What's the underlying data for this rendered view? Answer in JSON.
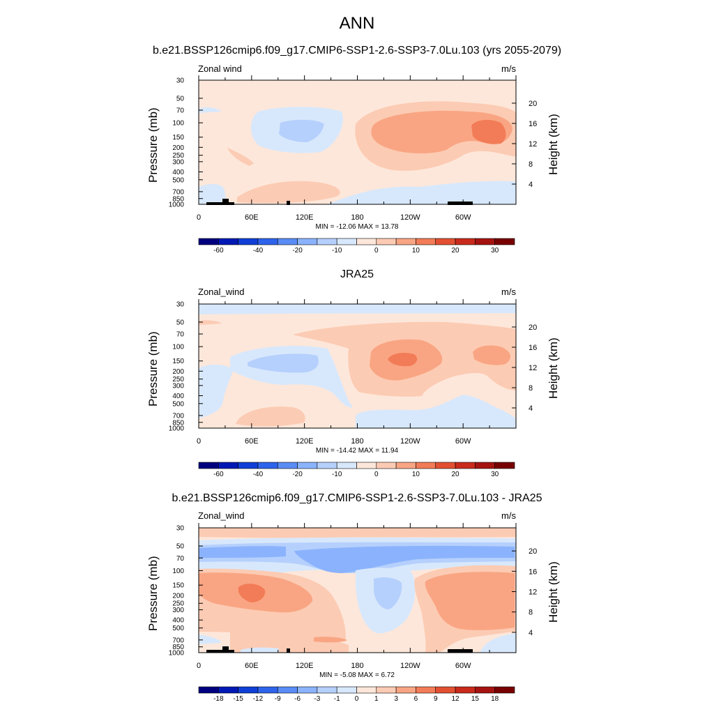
{
  "figure": {
    "title": "ANN"
  },
  "colors": {
    "scale": [
      "#00007f",
      "#0019b4",
      "#0f3fd6",
      "#2e63eb",
      "#5a8cf6",
      "#8bb3fd",
      "#b6d0fd",
      "#d8e8fc",
      "#fde7da",
      "#fccbb3",
      "#f9a583",
      "#f27c57",
      "#e35031",
      "#c92a1b",
      "#a51310",
      "#780000"
    ]
  },
  "chart_data": [
    {
      "type": "heatmap",
      "title": "b.e21.BSSP126cmip6.f09_g17.CMIP6-SSP1-2.6-SSP3-7.0Lu.103 (yrs 2055-2079)",
      "variable": "Zonal wind",
      "units": "m/s",
      "ylabel": "Pressure (mb)",
      "y2label": "Height (km)",
      "x_ticks": [
        "0",
        "60E",
        "120E",
        "180",
        "120W",
        "60W"
      ],
      "y_ticks": [
        "30",
        "50",
        "70",
        "100",
        "150",
        "200",
        "250",
        "300",
        "400",
        "500",
        "700",
        "850",
        "1000"
      ],
      "y2_ticks": [
        "20",
        "16",
        "12",
        "8",
        "4"
      ],
      "stats": "MIN = -12.06  MAX =  13.78",
      "colorbar_labels": [
        "-60",
        "-40",
        "-20",
        "-10",
        "0",
        "10",
        "20",
        "30"
      ],
      "min": -12.06,
      "max": 13.78
    },
    {
      "type": "heatmap",
      "title": "JRA25",
      "variable": "Zonal_wind",
      "units": "m/s",
      "ylabel": "Pressure (mb)",
      "y2label": "Height (km)",
      "x_ticks": [
        "0",
        "60E",
        "120E",
        "180",
        "120W",
        "60W"
      ],
      "y_ticks": [
        "30",
        "50",
        "70",
        "100",
        "150",
        "200",
        "250",
        "300",
        "400",
        "500",
        "700",
        "850",
        "1000"
      ],
      "y2_ticks": [
        "20",
        "16",
        "12",
        "8",
        "4"
      ],
      "stats": "MIN = -14.42  MAX =  11.94",
      "colorbar_labels": [
        "-60",
        "-40",
        "-20",
        "-10",
        "0",
        "10",
        "20",
        "30"
      ],
      "min": -14.42,
      "max": 11.94
    },
    {
      "type": "heatmap",
      "title": "b.e21.BSSP126cmip6.f09_g17.CMIP6-SSP1-2.6-SSP3-7.0Lu.103 - JRA25",
      "variable": "Zonal_wind",
      "units": "m/s",
      "ylabel": "Pressure (mb)",
      "y2label": "Height (km)",
      "x_ticks": [
        "0",
        "60E",
        "120E",
        "180",
        "120W",
        "60W"
      ],
      "y_ticks": [
        "30",
        "50",
        "70",
        "100",
        "150",
        "200",
        "250",
        "300",
        "400",
        "500",
        "700",
        "850",
        "1000"
      ],
      "y2_ticks": [
        "20",
        "16",
        "12",
        "8",
        "4"
      ],
      "stats": "MIN =  -5.08  MAX =  6.72",
      "colorbar_labels": [
        "-18",
        "-15",
        "-12",
        "-9",
        "-6",
        "-3",
        "-1",
        "0",
        "1",
        "3",
        "6",
        "9",
        "12",
        "15",
        "18"
      ],
      "min": -5.08,
      "max": 6.72
    }
  ]
}
